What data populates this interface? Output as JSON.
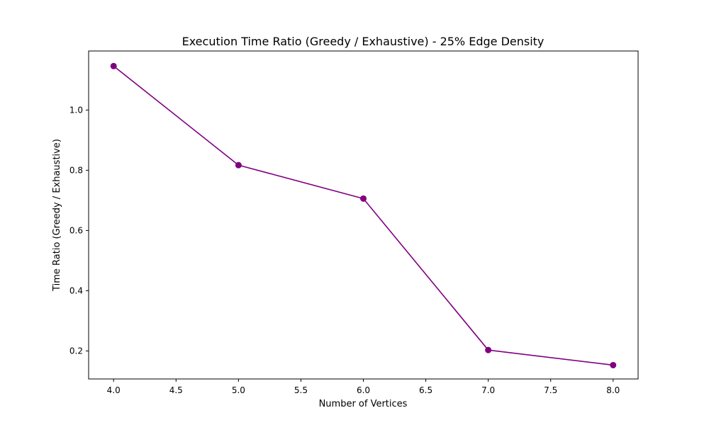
{
  "chart_data": {
    "type": "line",
    "title": "Execution Time Ratio (Greedy / Exhaustive) - 25% Edge Density",
    "xlabel": "Number of Vertices",
    "ylabel": "Time Ratio (Greedy / Exhaustive)",
    "xlim": [
      3.8,
      8.2
    ],
    "ylim": [
      0.107,
      1.196
    ],
    "x_ticks": [
      4.0,
      4.5,
      5.0,
      5.5,
      6.0,
      6.5,
      7.0,
      7.5,
      8.0
    ],
    "x_tick_labels": [
      "4.0",
      "4.5",
      "5.0",
      "5.5",
      "6.0",
      "6.5",
      "7.0",
      "7.5",
      "8.0"
    ],
    "y_ticks": [
      0.2,
      0.4,
      0.6,
      0.8,
      1.0
    ],
    "y_tick_labels": [
      "0.2",
      "0.4",
      "0.6",
      "0.8",
      "1.0"
    ],
    "grid": false,
    "legend": false,
    "series": [
      {
        "color": "#800080",
        "marker": "circle",
        "x": [
          4,
          5,
          6,
          7,
          8
        ],
        "y": [
          1.146,
          0.817,
          0.706,
          0.203,
          0.153
        ]
      }
    ]
  }
}
